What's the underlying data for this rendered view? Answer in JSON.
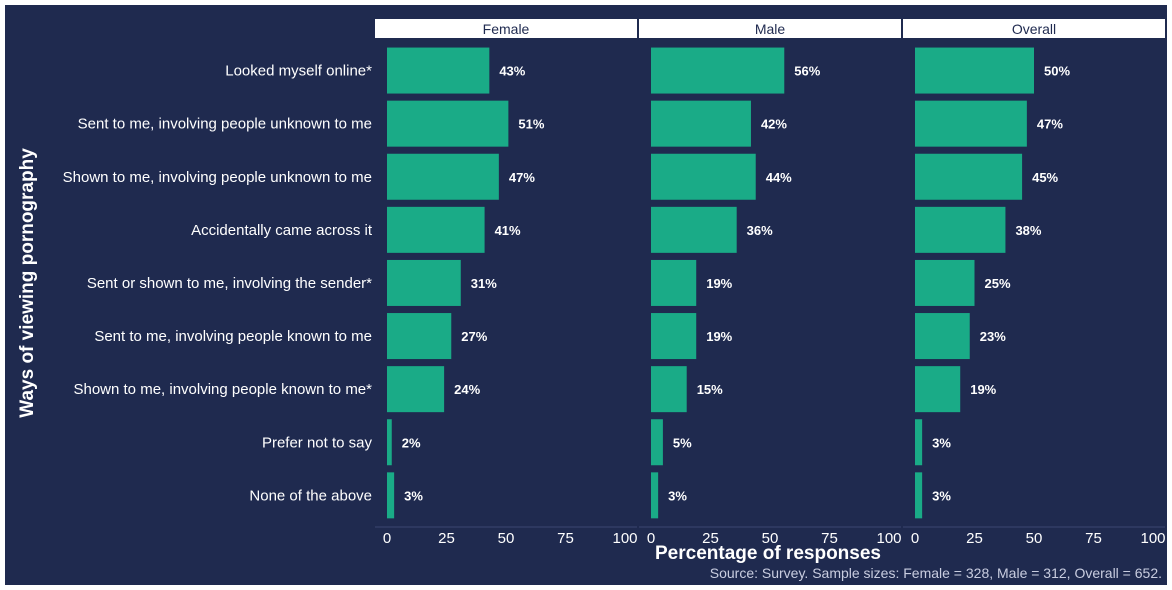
{
  "chart_data": {
    "type": "bar",
    "orientation": "horizontal",
    "categories": [
      "Looked myself online*",
      "Sent to me, involving people unknown to me",
      "Shown to me, involving people unknown to me",
      "Accidentally came across it",
      "Sent or shown to me, involving the sender*",
      "Sent to me, involving people known to me",
      "Shown to me, involving people known to me*",
      "Prefer not to say",
      "None of the above"
    ],
    "series": [
      {
        "name": "Female",
        "values": [
          43,
          51,
          47,
          41,
          31,
          27,
          24,
          2,
          3
        ]
      },
      {
        "name": "Male",
        "values": [
          56,
          42,
          44,
          36,
          19,
          19,
          15,
          5,
          3
        ]
      },
      {
        "name": "Overall",
        "values": [
          50,
          47,
          45,
          38,
          25,
          23,
          19,
          3,
          3
        ]
      }
    ],
    "value_suffix": "%",
    "xlabel": "Percentage of responses",
    "ylabel": "Ways of viewing pornography",
    "xlim": [
      0,
      100
    ],
    "xticks": [
      "0",
      "25",
      "50",
      "75",
      "100"
    ],
    "caption": "Source: Survey. Sample sizes: Female = 328, Male = 312, Overall = 652.",
    "facets": "side-by-side",
    "grid": false,
    "colors": {
      "background": "#1f2a4f",
      "bar": "#1aab87",
      "facet_strip": "#ffffff",
      "text": "#ffffff",
      "caption": "#c9cde0"
    }
  }
}
